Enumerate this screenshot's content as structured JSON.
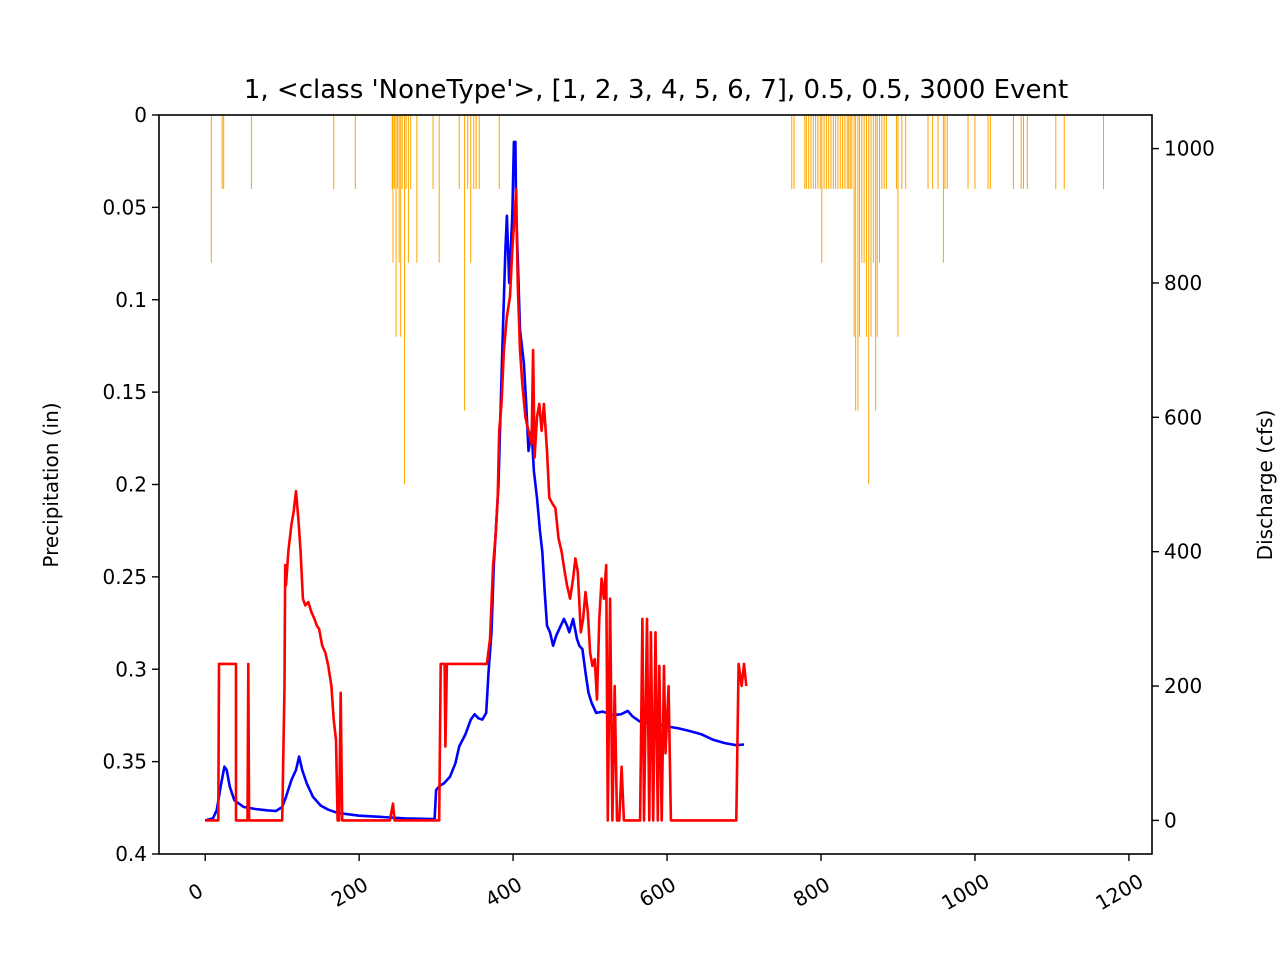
{
  "chart_data": {
    "type": "line",
    "title": "1, <class 'NoneType'>, [1, 2, 3, 4, 5, 6, 7], 0.5, 0.5, 3000 Event",
    "xlabel": "",
    "xlim": [
      -60,
      1230
    ],
    "xticks": [
      "0",
      "200",
      "400",
      "600",
      "800",
      "1000",
      "1200"
    ],
    "grid": false,
    "left_axis": {
      "label": "Precipitation (in)",
      "ylim": [
        0,
        0.4
      ],
      "inverted": true,
      "ticks": [
        "0",
        "0.05",
        "0.1",
        "0.15",
        "0.2",
        "0.25",
        "0.3",
        "0.35",
        "0.4"
      ]
    },
    "right_axis": {
      "label": "Discharge (cfs)",
      "ylim": [
        -50,
        1050
      ],
      "ticks": [
        "0",
        "200",
        "400",
        "600",
        "800",
        "1000"
      ]
    },
    "colors": {
      "precipitation": "#ffa500",
      "observed": "#0000ff",
      "simulated": "#ff0000"
    },
    "precipitation": [
      [
        8,
        0.08
      ],
      [
        22,
        0.04
      ],
      [
        24,
        0.04
      ],
      [
        60,
        0.04
      ],
      [
        167,
        0.04
      ],
      [
        195,
        0.04
      ],
      [
        243,
        0.04
      ],
      [
        244,
        0.08
      ],
      [
        246,
        0.04
      ],
      [
        248,
        0.12
      ],
      [
        250,
        0.04
      ],
      [
        252,
        0.08
      ],
      [
        254,
        0.12
      ],
      [
        256,
        0.04
      ],
      [
        259,
        0.2
      ],
      [
        261,
        0.04
      ],
      [
        264,
        0.08
      ],
      [
        267,
        0.04
      ],
      [
        275,
        0.08
      ],
      [
        296,
        0.04
      ],
      [
        304,
        0.08
      ],
      [
        330,
        0.04
      ],
      [
        337,
        0.16
      ],
      [
        341,
        0.04
      ],
      [
        345,
        0.08
      ],
      [
        349,
        0.04
      ],
      [
        352,
        0.04
      ],
      [
        356,
        0.04
      ],
      [
        382,
        0.04
      ],
      [
        762,
        0.04
      ],
      [
        765,
        0.04
      ],
      [
        779,
        0.04
      ],
      [
        781,
        0.04
      ],
      [
        784,
        0.04
      ],
      [
        787,
        0.04
      ],
      [
        790,
        0.04
      ],
      [
        793,
        0.04
      ],
      [
        796,
        0.04
      ],
      [
        799,
        0.04
      ],
      [
        801,
        0.08
      ],
      [
        804,
        0.04
      ],
      [
        807,
        0.04
      ],
      [
        810,
        0.04
      ],
      [
        813,
        0.04
      ],
      [
        816,
        0.04
      ],
      [
        819,
        0.04
      ],
      [
        822,
        0.04
      ],
      [
        825,
        0.04
      ],
      [
        828,
        0.04
      ],
      [
        831,
        0.04
      ],
      [
        834,
        0.04
      ],
      [
        836,
        0.04
      ],
      [
        838,
        0.04
      ],
      [
        840,
        0.04
      ],
      [
        843,
        0.12
      ],
      [
        845,
        0.16
      ],
      [
        848,
        0.16
      ],
      [
        850,
        0.12
      ],
      [
        853,
        0.08
      ],
      [
        856,
        0.08
      ],
      [
        859,
        0.12
      ],
      [
        862,
        0.2
      ],
      [
        865,
        0.12
      ],
      [
        868,
        0.08
      ],
      [
        871,
        0.16
      ],
      [
        873,
        0.12
      ],
      [
        876,
        0.08
      ],
      [
        879,
        0.04
      ],
      [
        882,
        0.04
      ],
      [
        885,
        0.04
      ],
      [
        898,
        0.04
      ],
      [
        900,
        0.12
      ],
      [
        905,
        0.04
      ],
      [
        910,
        0.04
      ],
      [
        939,
        0.04
      ],
      [
        945,
        0.04
      ],
      [
        952,
        0.04
      ],
      [
        959,
        0.08
      ],
      [
        961,
        0.04
      ],
      [
        964,
        0.04
      ],
      [
        991,
        0.04
      ],
      [
        1000,
        0.04
      ],
      [
        1017,
        0.04
      ],
      [
        1020,
        0.04
      ],
      [
        1050,
        0.04
      ],
      [
        1060,
        0.04
      ],
      [
        1063,
        0.04
      ],
      [
        1068,
        0.04
      ],
      [
        1105,
        0.04
      ],
      [
        1116,
        0.04
      ],
      [
        1167,
        0.04
      ]
    ],
    "series": [
      {
        "values": [
          [
            0,
            0
          ],
          [
            10,
            3
          ],
          [
            15,
            15
          ],
          [
            20,
            50
          ],
          [
            25,
            80
          ],
          [
            28,
            75
          ],
          [
            32,
            50
          ],
          [
            38,
            30
          ],
          [
            50,
            20
          ],
          [
            65,
            17
          ],
          [
            80,
            15
          ],
          [
            92,
            14
          ],
          [
            100,
            20
          ],
          [
            105,
            35
          ],
          [
            112,
            60
          ],
          [
            118,
            75
          ],
          [
            122,
            95
          ],
          [
            126,
            75
          ],
          [
            132,
            55
          ],
          [
            140,
            35
          ],
          [
            150,
            22
          ],
          [
            160,
            16
          ],
          [
            170,
            12
          ],
          [
            180,
            10
          ],
          [
            200,
            7
          ],
          [
            230,
            5
          ],
          [
            260,
            3
          ],
          [
            295,
            2
          ],
          [
            298,
            2
          ],
          [
            300,
            45
          ],
          [
            305,
            52
          ],
          [
            310,
            55
          ],
          [
            318,
            65
          ],
          [
            325,
            85
          ],
          [
            330,
            110
          ],
          [
            338,
            128
          ],
          [
            345,
            150
          ],
          [
            350,
            158
          ],
          [
            355,
            152
          ],
          [
            360,
            150
          ],
          [
            365,
            160
          ],
          [
            368,
            220
          ],
          [
            372,
            280
          ],
          [
            375,
            380
          ],
          [
            378,
            440
          ],
          [
            381,
            500
          ],
          [
            383,
            580
          ],
          [
            386,
            700
          ],
          [
            390,
            850
          ],
          [
            392,
            900
          ],
          [
            395,
            800
          ],
          [
            399,
            900
          ],
          [
            401,
            1010
          ],
          [
            403,
            1010
          ],
          [
            404,
            900
          ],
          [
            406,
            840
          ],
          [
            409,
            730
          ],
          [
            414,
            680
          ],
          [
            417,
            620
          ],
          [
            420,
            550
          ],
          [
            424,
            580
          ],
          [
            427,
            520
          ],
          [
            431,
            480
          ],
          [
            435,
            430
          ],
          [
            438,
            400
          ],
          [
            441,
            340
          ],
          [
            444,
            290
          ],
          [
            448,
            280
          ],
          [
            452,
            260
          ],
          [
            456,
            275
          ],
          [
            460,
            285
          ],
          [
            466,
            300
          ],
          [
            470,
            290
          ],
          [
            473,
            280
          ],
          [
            478,
            300
          ],
          [
            483,
            270
          ],
          [
            486,
            260
          ],
          [
            490,
            255
          ],
          [
            494,
            220
          ],
          [
            498,
            190
          ],
          [
            502,
            175
          ],
          [
            508,
            160
          ],
          [
            516,
            162
          ],
          [
            522,
            160
          ],
          [
            530,
            157
          ],
          [
            540,
            158
          ],
          [
            549,
            163
          ],
          [
            555,
            155
          ],
          [
            565,
            147
          ],
          [
            578,
            145
          ],
          [
            590,
            143
          ],
          [
            600,
            140
          ],
          [
            615,
            137
          ],
          [
            630,
            133
          ],
          [
            645,
            128
          ],
          [
            660,
            120
          ],
          [
            675,
            115
          ],
          [
            690,
            112
          ],
          [
            700,
            113
          ]
        ]
      },
      {
        "values": [
          [
            0,
            0
          ],
          [
            17,
            0
          ],
          [
            18,
            233
          ],
          [
            40,
            233
          ],
          [
            40,
            0
          ],
          [
            55,
            0
          ],
          [
            56,
            233
          ],
          [
            57,
            0
          ],
          [
            100,
            0
          ],
          [
            103,
            200
          ],
          [
            104,
            380
          ],
          [
            105,
            350
          ],
          [
            108,
            400
          ],
          [
            112,
            440
          ],
          [
            115,
            460
          ],
          [
            118,
            490
          ],
          [
            121,
            450
          ],
          [
            124,
            400
          ],
          [
            127,
            330
          ],
          [
            130,
            320
          ],
          [
            134,
            325
          ],
          [
            138,
            310
          ],
          [
            142,
            300
          ],
          [
            145,
            290
          ],
          [
            148,
            285
          ],
          [
            152,
            260
          ],
          [
            156,
            250
          ],
          [
            160,
            230
          ],
          [
            164,
            200
          ],
          [
            167,
            150
          ],
          [
            170,
            120
          ],
          [
            172,
            0
          ],
          [
            174,
            0
          ],
          [
            176,
            190
          ],
          [
            178,
            0
          ],
          [
            240,
            0
          ],
          [
            244,
            25
          ],
          [
            246,
            0
          ],
          [
            304,
            0
          ],
          [
            306,
            233
          ],
          [
            311,
            233
          ],
          [
            312,
            110
          ],
          [
            314,
            233
          ],
          [
            362,
            233
          ],
          [
            366,
            233
          ],
          [
            370,
            270
          ],
          [
            374,
            380
          ],
          [
            377,
            420
          ],
          [
            380,
            480
          ],
          [
            382,
            580
          ],
          [
            385,
            620
          ],
          [
            388,
            700
          ],
          [
            392,
            750
          ],
          [
            396,
            780
          ],
          [
            399,
            850
          ],
          [
            402,
            900
          ],
          [
            404,
            940
          ],
          [
            406,
            800
          ],
          [
            409,
            700
          ],
          [
            412,
            650
          ],
          [
            416,
            600
          ],
          [
            420,
            580
          ],
          [
            424,
            560
          ],
          [
            426,
            700
          ],
          [
            428,
            540
          ],
          [
            431,
            600
          ],
          [
            434,
            620
          ],
          [
            437,
            580
          ],
          [
            440,
            620
          ],
          [
            444,
            550
          ],
          [
            447,
            480
          ],
          [
            452,
            470
          ],
          [
            455,
            465
          ],
          [
            459,
            420
          ],
          [
            463,
            400
          ],
          [
            467,
            370
          ],
          [
            470,
            350
          ],
          [
            474,
            330
          ],
          [
            478,
            360
          ],
          [
            481,
            390
          ],
          [
            484,
            370
          ],
          [
            488,
            280
          ],
          [
            491,
            300
          ],
          [
            494,
            340
          ],
          [
            497,
            310
          ],
          [
            500,
            250
          ],
          [
            503,
            230
          ],
          [
            506,
            240
          ],
          [
            509,
            180
          ],
          [
            512,
            300
          ],
          [
            515,
            360
          ],
          [
            518,
            330
          ],
          [
            521,
            380
          ],
          [
            523,
            0
          ],
          [
            526,
            330
          ],
          [
            529,
            0
          ],
          [
            532,
            200
          ],
          [
            535,
            0
          ],
          [
            538,
            0
          ],
          [
            541,
            80
          ],
          [
            544,
            0
          ],
          [
            565,
            0
          ],
          [
            568,
            300
          ],
          [
            570,
            0
          ],
          [
            574,
            300
          ],
          [
            577,
            0
          ],
          [
            579,
            280
          ],
          [
            582,
            0
          ],
          [
            585,
            280
          ],
          [
            588,
            0
          ],
          [
            590,
            230
          ],
          [
            593,
            0
          ],
          [
            596,
            230
          ],
          [
            598,
            100
          ],
          [
            602,
            200
          ],
          [
            605,
            0
          ],
          [
            690,
            0
          ],
          [
            693,
            233
          ],
          [
            697,
            200
          ],
          [
            700,
            233
          ],
          [
            703,
            200
          ]
        ]
      }
    ]
  }
}
